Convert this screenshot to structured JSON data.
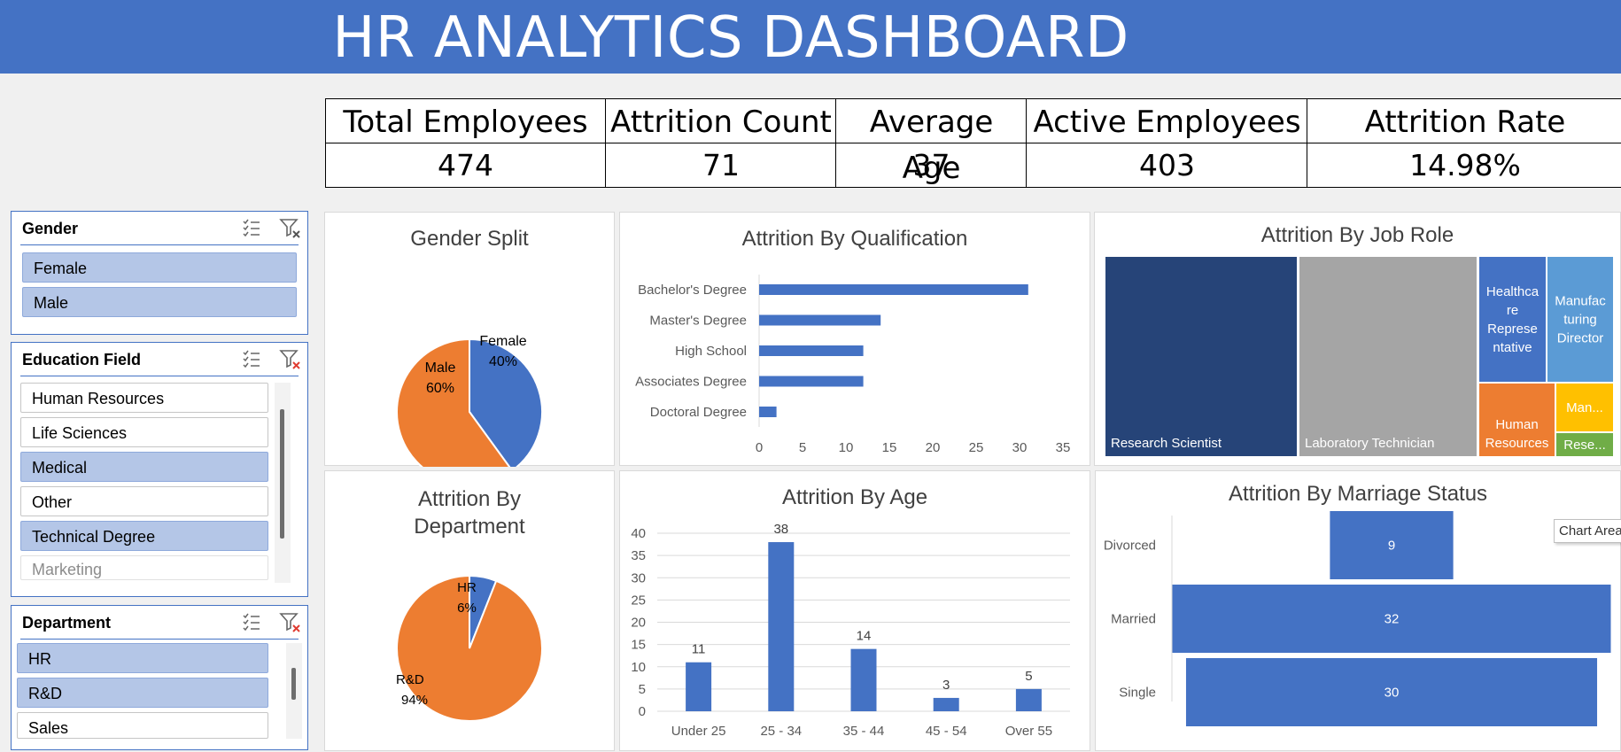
{
  "header": {
    "title": "HR ANALYTICS DASHBOARD"
  },
  "kpis": [
    {
      "label": "Total Employees",
      "value": "474"
    },
    {
      "label": "Attrition Count",
      "value": "71"
    },
    {
      "label": "Average Age",
      "value": "37"
    },
    {
      "label": "Active Employees",
      "value": "403"
    },
    {
      "label": "Attrition Rate",
      "value": "14.98%"
    }
  ],
  "slicers": {
    "gender": {
      "title": "Gender",
      "items": [
        {
          "label": "Female",
          "selected": true
        },
        {
          "label": "Male",
          "selected": true
        }
      ]
    },
    "education": {
      "title": "Education Field",
      "items": [
        {
          "label": "Human Resources",
          "selected": false
        },
        {
          "label": "Life Sciences",
          "selected": false
        },
        {
          "label": "Medical",
          "selected": true
        },
        {
          "label": "Other",
          "selected": false
        },
        {
          "label": "Technical Degree",
          "selected": true
        },
        {
          "label": "Marketing",
          "selected": false
        }
      ]
    },
    "department": {
      "title": "Department",
      "items": [
        {
          "label": "HR",
          "selected": true
        },
        {
          "label": "R&D",
          "selected": true
        },
        {
          "label": "Sales",
          "selected": false
        }
      ]
    }
  },
  "colors": {
    "blue": "#4472c4",
    "orange": "#ed7d31",
    "navy": "#264478",
    "gray": "#a5a5a5",
    "lightblue": "#5b9bd5",
    "gold": "#ffc000",
    "green": "#70ad47"
  },
  "tooltip": "Chart Area",
  "chart_data": [
    {
      "type": "pie",
      "title": "Gender Split",
      "slices": [
        {
          "name": "Female",
          "value": 40,
          "label": "40%"
        },
        {
          "name": "Male",
          "value": 60,
          "label": "60%"
        }
      ]
    },
    {
      "type": "bar",
      "orientation": "horizontal",
      "title": "Attrition By Qualification",
      "categories": [
        "Bachelor's Degree",
        "Master's Degree",
        "High School",
        "Associates Degree",
        "Doctoral Degree"
      ],
      "values": [
        31,
        14,
        12,
        12,
        2
      ],
      "xlim": [
        0,
        35
      ],
      "ticks": [
        "0",
        "5",
        "10",
        "15",
        "20",
        "25",
        "30",
        "35"
      ]
    },
    {
      "type": "treemap",
      "title": "Attrition By Job Role",
      "items": [
        {
          "name": "Research Scientist"
        },
        {
          "name": "Laboratory Technician"
        },
        {
          "name": "Healthca re Represe ntative"
        },
        {
          "name": "Manufac turing Director"
        },
        {
          "name": "Human Resources"
        },
        {
          "name": "Man..."
        },
        {
          "name": "Rese..."
        }
      ]
    },
    {
      "type": "pie",
      "title": "Attrition By Department",
      "slices": [
        {
          "name": "HR",
          "value": 6,
          "label": "6%"
        },
        {
          "name": "R&D",
          "value": 94,
          "label": "94%"
        }
      ]
    },
    {
      "type": "bar",
      "title": "Attrition By Age",
      "categories": [
        "Under 25",
        "25 - 34",
        "35 - 44",
        "45 - 54",
        "Over 55"
      ],
      "values": [
        11,
        38,
        14,
        3,
        5
      ],
      "ylim": [
        0,
        40
      ],
      "ticks": [
        "0",
        "5",
        "10",
        "15",
        "20",
        "25",
        "30",
        "35",
        "40"
      ]
    },
    {
      "type": "bar",
      "orientation": "horizontal",
      "title": "Attrition By Marriage Status",
      "categories": [
        "Divorced",
        "Married",
        "Single"
      ],
      "values": [
        9,
        32,
        30
      ]
    }
  ]
}
